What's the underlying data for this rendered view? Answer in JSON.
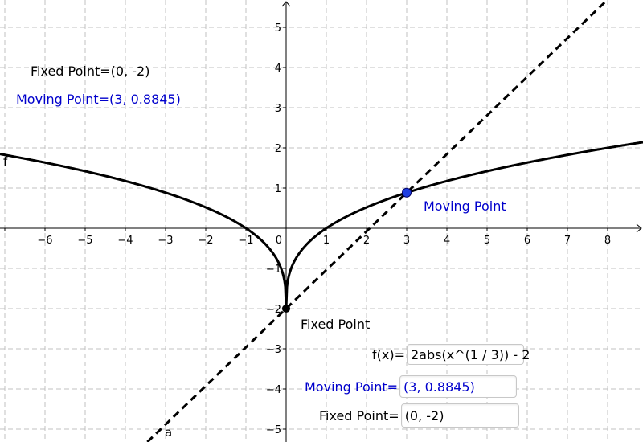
{
  "axes": {
    "x_ticks": [
      "−6",
      "−5",
      "−4",
      "−3",
      "−2",
      "−1",
      "0",
      "1",
      "2",
      "3",
      "4",
      "5",
      "6",
      "7",
      "8"
    ],
    "y_ticks": [
      "5",
      "4",
      "3",
      "2",
      "1",
      "−1",
      "−2",
      "−3",
      "−4",
      "−5"
    ],
    "x_range": [
      -7,
      8.9
    ],
    "y_range": [
      -5.3,
      5.6
    ],
    "grid": true,
    "grid_color": "#c0c0c0"
  },
  "curves": {
    "f_label": "f",
    "a_label": "a",
    "curve_color": "#000000"
  },
  "points": {
    "fixed": {
      "x": 0,
      "y": -2,
      "color": "#000000",
      "label": "Fixed Point"
    },
    "moving": {
      "x": 3,
      "y": 0.8845,
      "color": "#1f3fe0",
      "label": "Moving Point"
    }
  },
  "info_text": {
    "fixed_point": "Fixed Point=(0, -2)",
    "moving_point": "Moving Point=(3, 0.8845)"
  },
  "inputs": {
    "function": {
      "label": "f(x)=",
      "value": "2abs(x^(1 / 3)) - 2"
    },
    "moving_point": {
      "label": "Moving Point=",
      "value": "(3, 0.8845)"
    },
    "fixed_point": {
      "label": "Fixed Point=",
      "value": "(0, -2)"
    }
  },
  "colors": {
    "blue_text": "#0000cc",
    "black_text": "#000000"
  }
}
